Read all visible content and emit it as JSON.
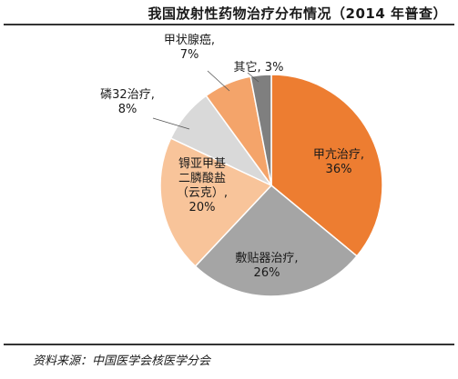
{
  "header": {
    "title": "我国放射性药物治疗分布情况（2014 年普查）"
  },
  "footer": {
    "source": "资料来源：中国医学会核医学分会"
  },
  "chart_data": {
    "type": "pie",
    "title": "我国放射性药物治疗分布情况（2014 年普查）",
    "start_angle_deg": 0,
    "direction": "clockwise",
    "slices": [
      {
        "label_lines": [
          "甲亢治疗,",
          "36%"
        ],
        "value": 36,
        "color": "#ED7D31"
      },
      {
        "label_lines": [
          "敷贴器治疗,",
          "26%"
        ],
        "value": 26,
        "color": "#A5A5A5"
      },
      {
        "label_lines": [
          "锝亚甲基",
          "二膦酸盐",
          "（云克）,",
          "20%"
        ],
        "value": 20,
        "color": "#F8C49A"
      },
      {
        "label_lines": [
          "磷32治疗,",
          "8%"
        ],
        "value": 8,
        "color": "#D9D9D9"
      },
      {
        "label_lines": [
          "甲状腺癌,",
          "7%"
        ],
        "value": 7,
        "color": "#F4A46A"
      },
      {
        "label_lines": [
          "其它, 3%"
        ],
        "value": 3,
        "color": "#7F7F7F"
      }
    ]
  }
}
